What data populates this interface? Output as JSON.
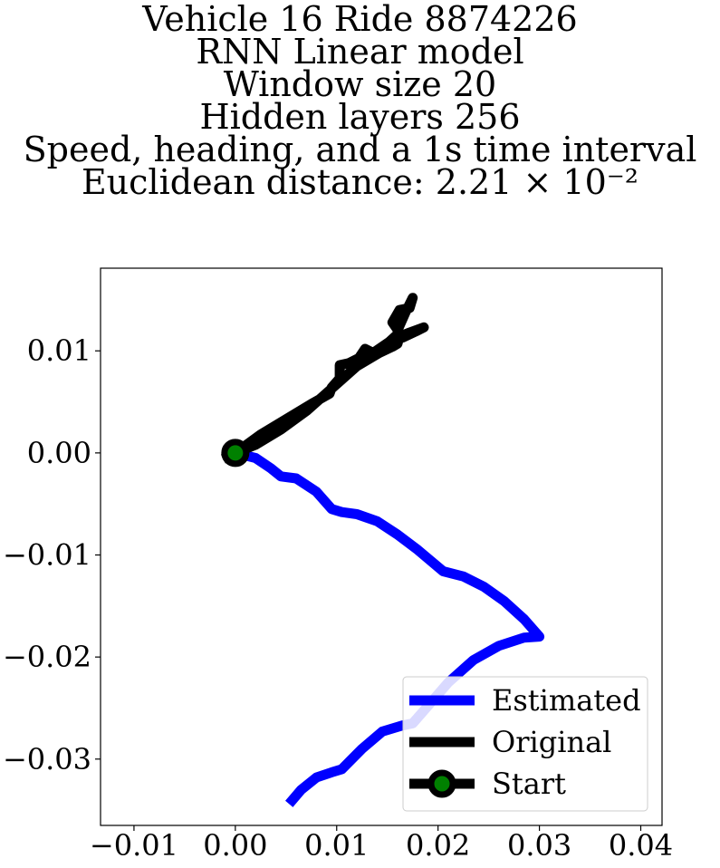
{
  "chart_data": {
    "type": "line",
    "title_lines": [
      "Vehicle 16 Ride 8874226",
      "RNN Linear model",
      "Window size 20",
      "Hidden layers 256",
      "Speed, heading, and a 1s time interval",
      "Euclidean distance: 2.21 × 10⁻²"
    ],
    "xlabel": "",
    "ylabel": "",
    "xlim": [
      -0.0133,
      0.0421
    ],
    "ylim": [
      -0.0365,
      0.0181
    ],
    "x_ticks": [
      -0.01,
      0.0,
      0.01,
      0.02,
      0.03,
      0.04
    ],
    "x_tick_labels": [
      "−0.01",
      "0.00",
      "0.01",
      "0.02",
      "0.03",
      "0.04"
    ],
    "y_ticks": [
      0.01,
      0.0,
      -0.01,
      -0.02,
      -0.03
    ],
    "y_tick_labels": [
      "0.01",
      "0.00",
      "−0.01",
      "−0.02",
      "−0.03"
    ],
    "grid": false,
    "legend_position": "bottom-right",
    "series": [
      {
        "name": "Estimated",
        "color": "#0000ff",
        "points": [
          [
            0.0,
            0.0
          ],
          [
            0.002,
            -0.0005
          ],
          [
            0.0035,
            -0.0015
          ],
          [
            0.0045,
            -0.0023
          ],
          [
            0.006,
            -0.0025
          ],
          [
            0.008,
            -0.0038
          ],
          [
            0.0095,
            -0.0055
          ],
          [
            0.0105,
            -0.0058
          ],
          [
            0.012,
            -0.006
          ],
          [
            0.014,
            -0.0067
          ],
          [
            0.016,
            -0.008
          ],
          [
            0.018,
            -0.0095
          ],
          [
            0.0205,
            -0.0116
          ],
          [
            0.0225,
            -0.0121
          ],
          [
            0.0245,
            -0.0131
          ],
          [
            0.0265,
            -0.0145
          ],
          [
            0.0285,
            -0.0163
          ],
          [
            0.03,
            -0.018
          ],
          [
            0.0285,
            -0.0181
          ],
          [
            0.026,
            -0.0189
          ],
          [
            0.0235,
            -0.0203
          ],
          [
            0.021,
            -0.0225
          ],
          [
            0.019,
            -0.0248
          ],
          [
            0.0175,
            -0.0265
          ],
          [
            0.0165,
            -0.0267
          ],
          [
            0.0145,
            -0.0273
          ],
          [
            0.0125,
            -0.029
          ],
          [
            0.0105,
            -0.031
          ],
          [
            0.0095,
            -0.0313
          ],
          [
            0.008,
            -0.0318
          ],
          [
            0.0065,
            -0.033
          ],
          [
            0.0053,
            -0.0344
          ]
        ]
      },
      {
        "name": "Original",
        "color": "#000000",
        "points": [
          [
            -0.0012,
            -0.0006
          ],
          [
            0.0,
            0.0
          ],
          [
            0.0025,
            0.0018
          ],
          [
            0.005,
            0.0033
          ],
          [
            0.0075,
            0.0048
          ],
          [
            0.0093,
            0.0058
          ],
          [
            0.0095,
            0.0064
          ],
          [
            0.0103,
            0.0073
          ],
          [
            0.0103,
            0.0086
          ],
          [
            0.0112,
            0.0088
          ],
          [
            0.0122,
            0.0093
          ],
          [
            0.0128,
            0.0102
          ],
          [
            0.0136,
            0.0098
          ],
          [
            0.0152,
            0.0109
          ],
          [
            0.0162,
            0.0118
          ],
          [
            0.0155,
            0.0128
          ],
          [
            0.0162,
            0.014
          ],
          [
            0.0172,
            0.0142
          ],
          [
            0.0175,
            0.0152
          ],
          [
            0.0168,
            0.0138
          ],
          [
            0.016,
            0.012
          ],
          [
            0.0165,
            0.0113
          ],
          [
            0.0178,
            0.0119
          ],
          [
            0.0186,
            0.0123
          ],
          [
            0.0172,
            0.0118
          ],
          [
            0.0162,
            0.0114
          ],
          [
            0.016,
            0.0107
          ],
          [
            0.0155,
            0.0104
          ],
          [
            0.0142,
            0.0098
          ],
          [
            0.012,
            0.0085
          ],
          [
            0.0095,
            0.0063
          ],
          [
            0.007,
            0.0041
          ],
          [
            0.0045,
            0.0023
          ],
          [
            0.002,
            0.0008
          ],
          [
            0.0,
            0.0
          ]
        ]
      }
    ],
    "start_marker": {
      "name": "Start",
      "x": 0.0,
      "y": 0.0,
      "edge_color": "#000000",
      "face_color": "#008000"
    },
    "legend": [
      {
        "label": "Estimated",
        "color": "#0000ff",
        "marker": false
      },
      {
        "label": "Original",
        "color": "#000000",
        "marker": false
      },
      {
        "label": "Start",
        "color": "#000000",
        "marker": true,
        "marker_face": "#008000"
      }
    ]
  }
}
